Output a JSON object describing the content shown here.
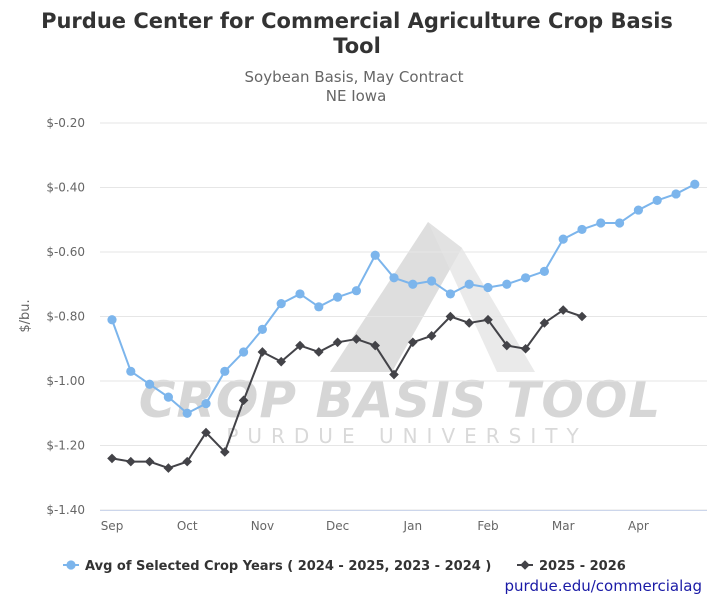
{
  "chart_data": {
    "type": "line",
    "title": "Purdue Center for Commercial Agriculture Crop Basis Tool",
    "subtitle_lines": [
      "Soybean Basis, May Contract",
      "NE Iowa"
    ],
    "ylabel": "$/bu.",
    "ylim": [
      -1.4,
      -0.2
    ],
    "y_ticks": [
      -0.2,
      -0.4,
      -0.6,
      -0.8,
      -1.0,
      -1.2,
      -1.4
    ],
    "y_tick_labels": [
      "$-0.20",
      "$-0.40",
      "$-0.60",
      "$-0.80",
      "$-1.00",
      "$-1.20",
      "$-1.40"
    ],
    "x_tick_labels": [
      "Sep",
      "Oct",
      "Nov",
      "Dec",
      "Jan",
      "Feb",
      "Mar",
      "Apr"
    ],
    "grid": "horizontal",
    "legend": "bottom",
    "series": [
      {
        "name": "Avg of Selected Crop Years ( 2024 - 2025, 2023 - 2024 )",
        "color": "#7cb5ec",
        "marker": "circle",
        "values": [
          -0.81,
          -0.97,
          -1.01,
          -1.05,
          -1.1,
          -1.07,
          -0.97,
          -0.91,
          -0.84,
          -0.76,
          -0.73,
          -0.77,
          -0.74,
          -0.72,
          -0.61,
          -0.68,
          -0.7,
          -0.69,
          -0.73,
          -0.7,
          -0.71,
          -0.7,
          -0.68,
          -0.66,
          -0.56,
          -0.53,
          -0.51,
          -0.51,
          -0.47,
          -0.44,
          -0.42,
          -0.39
        ]
      },
      {
        "name": "2025 - 2026",
        "color": "#434348",
        "marker": "diamond",
        "values": [
          -1.24,
          -1.25,
          -1.25,
          -1.27,
          -1.25,
          -1.16,
          -1.22,
          -1.06,
          -0.91,
          -0.94,
          -0.89,
          -0.91,
          -0.88,
          -0.87,
          -0.89,
          -0.98,
          -0.88,
          -0.86,
          -0.8,
          -0.82,
          -0.81,
          -0.89,
          -0.9,
          -0.82,
          -0.78,
          -0.8
        ]
      }
    ]
  },
  "watermark": {
    "main_text": "CROP BASIS TOOL",
    "sub_text": "PURDUE UNIVERSITY"
  },
  "credit": "purdue.edu/commercialag"
}
